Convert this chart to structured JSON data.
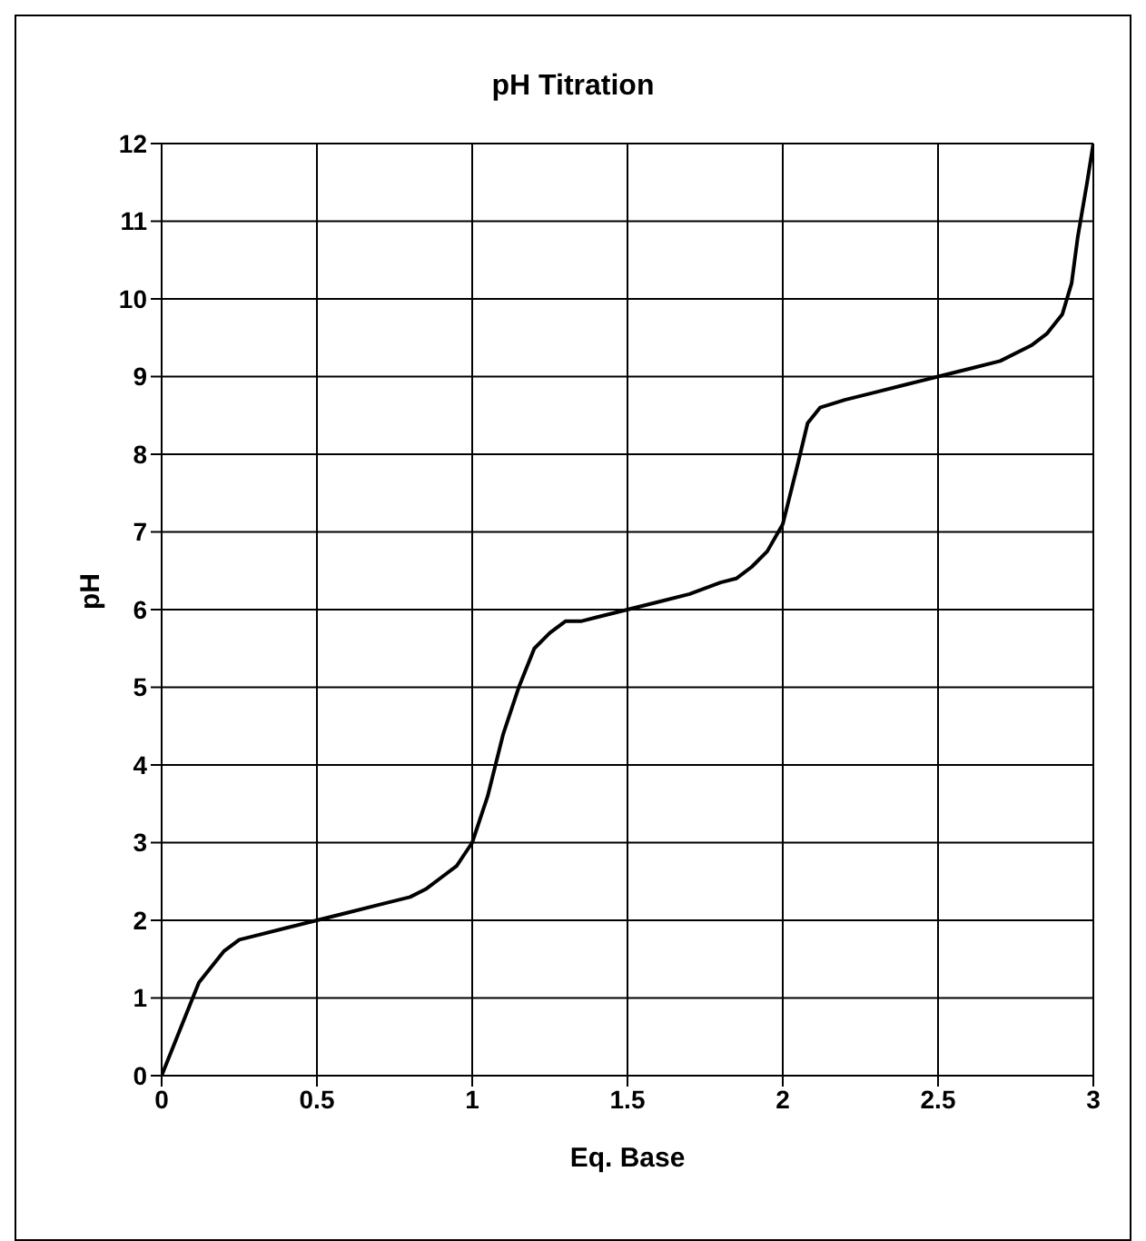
{
  "chart_data": {
    "type": "line",
    "title": "pH Titration",
    "xlabel": "Eq. Base",
    "ylabel": "pH",
    "series": [
      {
        "color": "#000000",
        "x": [
          0,
          0.05,
          0.1,
          0.12,
          0.2,
          0.25,
          0.3,
          0.4,
          0.5,
          0.6,
          0.7,
          0.8,
          0.85,
          0.9,
          0.95,
          1.0,
          1.05,
          1.1,
          1.15,
          1.2,
          1.25,
          1.3,
          1.35,
          1.4,
          1.5,
          1.6,
          1.7,
          1.8,
          1.85,
          1.9,
          1.95,
          2.0,
          2.05,
          2.08,
          2.12,
          2.2,
          2.3,
          2.4,
          2.5,
          2.6,
          2.7,
          2.8,
          2.85,
          2.9,
          2.93,
          2.95,
          2.98,
          3.0
        ],
        "values": [
          0,
          0.5,
          1.0,
          1.2,
          1.6,
          1.75,
          1.8,
          1.9,
          2.0,
          2.1,
          2.2,
          2.3,
          2.4,
          2.55,
          2.7,
          3.0,
          3.6,
          4.4,
          5.0,
          5.5,
          5.7,
          5.85,
          5.85,
          5.9,
          6.0,
          6.1,
          6.2,
          6.35,
          6.4,
          6.55,
          6.75,
          7.1,
          7.9,
          8.4,
          8.6,
          8.7,
          8.8,
          8.9,
          9.0,
          9.1,
          9.2,
          9.4,
          9.55,
          9.8,
          10.2,
          10.8,
          11.5,
          12
        ]
      }
    ],
    "xlim": [
      0,
      3
    ],
    "xticks": [
      0,
      0.5,
      1,
      1.5,
      2,
      2.5,
      3
    ],
    "ylim": [
      0,
      12
    ],
    "yticks": [
      0,
      1,
      2,
      3,
      4,
      5,
      6,
      7,
      8,
      9,
      10,
      11,
      12
    ],
    "grid": true,
    "marker": "none",
    "line_style": "solid",
    "legend": false
  }
}
